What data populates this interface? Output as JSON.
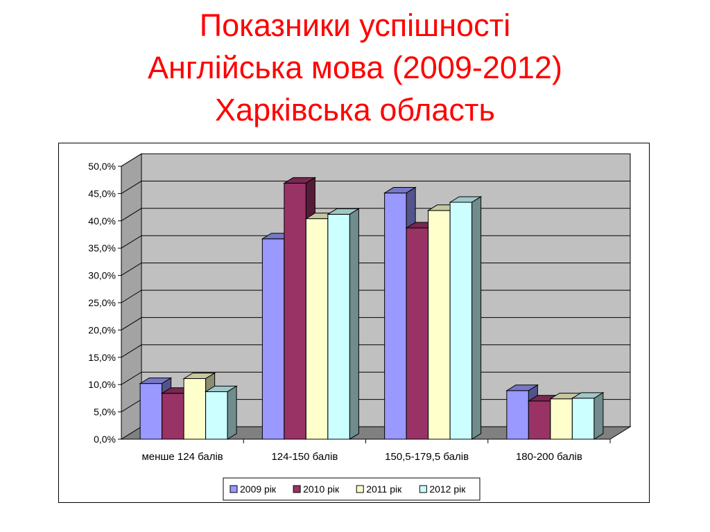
{
  "slide": {
    "title_lines": [
      "Показники успішності",
      "Англійська мова (2009-2012)",
      "Харківська область"
    ]
  },
  "chart_data": {
    "type": "bar",
    "categories": [
      "менше 124 балів",
      "124-150 балів",
      "150,5-179,5 балів",
      "180-200 балів"
    ],
    "series": [
      {
        "name": "2009 рік",
        "color": "#9999ff",
        "values": [
          10.2,
          36.7,
          45.1,
          8.9
        ]
      },
      {
        "name": "2010 рік",
        "color": "#993366",
        "values": [
          8.4,
          46.9,
          38.7,
          7.0
        ]
      },
      {
        "name": "2011 рік",
        "color": "#ffffcc",
        "values": [
          11.1,
          40.4,
          41.9,
          7.4
        ]
      },
      {
        "name": "2012 рік",
        "color": "#ccffff",
        "values": [
          8.7,
          41.2,
          43.4,
          7.5
        ]
      }
    ],
    "y_ticks": [
      "0,0%",
      "5,0%",
      "10,0%",
      "15,0%",
      "20,0%",
      "25,0%",
      "30,0%",
      "35,0%",
      "40,0%",
      "45,0%",
      "50,0%"
    ],
    "ylim": [
      0,
      50
    ],
    "grid": true,
    "legend_position": "bottom",
    "wall_color": "#c0c0c0",
    "floor_color": "#808080"
  }
}
